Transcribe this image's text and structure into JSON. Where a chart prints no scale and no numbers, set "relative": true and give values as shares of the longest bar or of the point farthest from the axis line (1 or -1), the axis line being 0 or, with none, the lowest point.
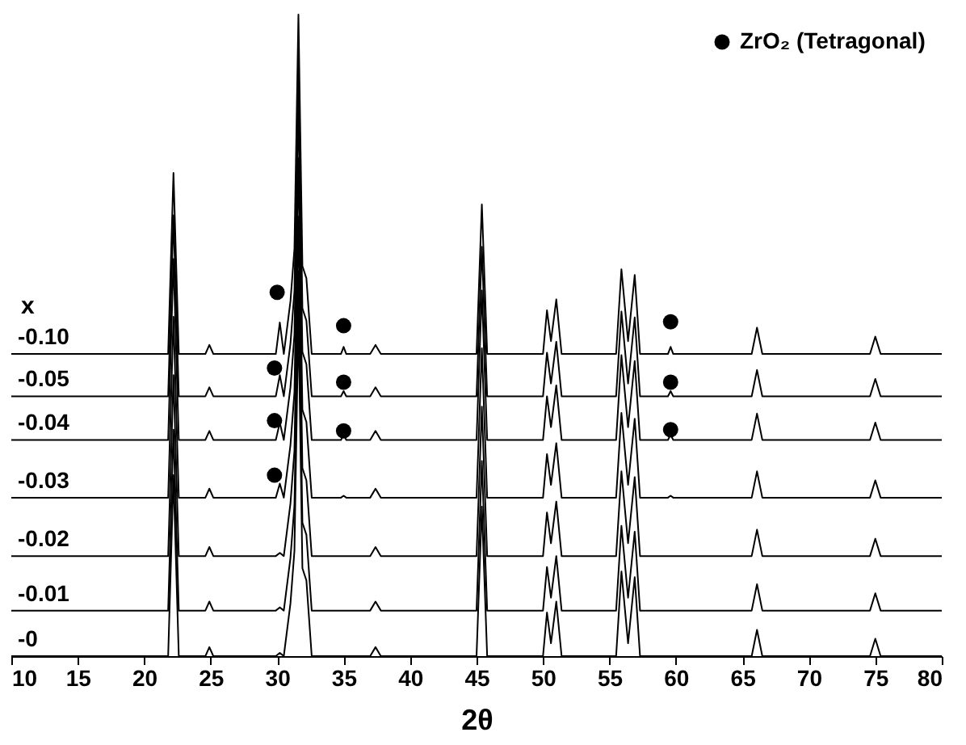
{
  "chart_data": {
    "type": "line",
    "relative": true,
    "xlabel": "2θ",
    "xlim": [
      10,
      80
    ],
    "xticks": [
      10,
      15,
      20,
      25,
      30,
      35,
      40,
      45,
      50,
      55,
      60,
      65,
      70,
      75,
      80
    ],
    "grid": false,
    "legend": "top right",
    "line_style": "solid",
    "annotations": [
      "x"
    ],
    "x": [
      10,
      15,
      21.8,
      22.2,
      22.6,
      24.6,
      24.9,
      25.2,
      29.9,
      30.2,
      30.5,
      31.0,
      31.3,
      31.6,
      31.9,
      32.2,
      32.6,
      34.8,
      35.0,
      35.2,
      37.0,
      37.4,
      37.8,
      45.0,
      45.4,
      45.8,
      50.0,
      50.3,
      50.6,
      51.0,
      51.4,
      55.5,
      55.9,
      56.4,
      56.9,
      57.3,
      59.4,
      59.6,
      59.8,
      65.7,
      66.1,
      66.5,
      74.6,
      75.0,
      75.4,
      80
    ],
    "series": [
      {
        "name": "-0",
        "color": "#000000",
        "values": [
          0,
          0,
          0,
          0.282,
          0,
          0,
          0.014,
          0,
          0,
          0.005,
          0,
          0.082,
          0.164,
          0.529,
          0.137,
          0.118,
          0,
          0,
          0,
          0,
          0,
          0.014,
          0,
          0,
          0.233,
          0,
          0,
          0.068,
          0.02,
          0.085,
          0,
          0,
          0.132,
          0.02,
          0.123,
          0,
          0,
          0,
          0,
          0,
          0.041,
          0,
          0,
          0.027,
          0,
          0
        ]
      },
      {
        "name": "-0.01",
        "color": "#000000",
        "values": [
          0.071,
          0.071,
          0.071,
          0.353,
          0.071,
          0.071,
          0.085,
          0.071,
          0.071,
          0.076,
          0.071,
          0.153,
          0.235,
          0.6,
          0.208,
          0.189,
          0.071,
          0.071,
          0.071,
          0.071,
          0.071,
          0.085,
          0.071,
          0.071,
          0.304,
          0.071,
          0.071,
          0.139,
          0.091,
          0.156,
          0.071,
          0.071,
          0.203,
          0.091,
          0.194,
          0.071,
          0.071,
          0.071,
          0.071,
          0.071,
          0.112,
          0.071,
          0.071,
          0.098,
          0.071,
          0.071
        ]
      },
      {
        "name": "-0.02",
        "color": "#000000",
        "values": [
          0.156,
          0.156,
          0.156,
          0.438,
          0.156,
          0.156,
          0.17,
          0.156,
          0.156,
          0.161,
          0.156,
          0.238,
          0.32,
          0.685,
          0.293,
          0.274,
          0.156,
          0.156,
          0.156,
          0.156,
          0.156,
          0.17,
          0.156,
          0.156,
          0.389,
          0.156,
          0.156,
          0.224,
          0.176,
          0.241,
          0.156,
          0.156,
          0.288,
          0.176,
          0.279,
          0.156,
          0.156,
          0.156,
          0.156,
          0.156,
          0.197,
          0.156,
          0.156,
          0.183,
          0.156,
          0.156
        ]
      },
      {
        "name": "-0.03",
        "color": "#000000",
        "values": [
          0.247,
          0.247,
          0.247,
          0.529,
          0.247,
          0.247,
          0.261,
          0.247,
          0.247,
          0.269,
          0.247,
          0.329,
          0.411,
          0.776,
          0.384,
          0.365,
          0.247,
          0.247,
          0.25,
          0.247,
          0.247,
          0.261,
          0.247,
          0.247,
          0.48,
          0.247,
          0.247,
          0.315,
          0.267,
          0.332,
          0.247,
          0.247,
          0.379,
          0.267,
          0.37,
          0.247,
          0.247,
          0.25,
          0.247,
          0.247,
          0.288,
          0.247,
          0.247,
          0.274,
          0.247,
          0.247
        ]
      },
      {
        "name": "-0.04",
        "color": "#000000",
        "values": [
          0.337,
          0.337,
          0.337,
          0.619,
          0.337,
          0.337,
          0.351,
          0.337,
          0.337,
          0.364,
          0.337,
          0.419,
          0.501,
          0.866,
          0.474,
          0.455,
          0.337,
          0.337,
          0.345,
          0.337,
          0.337,
          0.351,
          0.337,
          0.337,
          0.57,
          0.337,
          0.337,
          0.405,
          0.357,
          0.422,
          0.337,
          0.337,
          0.469,
          0.357,
          0.46,
          0.337,
          0.337,
          0.345,
          0.337,
          0.337,
          0.378,
          0.337,
          0.337,
          0.364,
          0.337,
          0.337
        ]
      },
      {
        "name": "-0.05",
        "color": "#000000",
        "values": [
          0.405,
          0.405,
          0.405,
          0.687,
          0.405,
          0.405,
          0.419,
          0.405,
          0.405,
          0.438,
          0.405,
          0.487,
          0.569,
          0.934,
          0.542,
          0.523,
          0.405,
          0.405,
          0.413,
          0.405,
          0.405,
          0.419,
          0.405,
          0.405,
          0.638,
          0.405,
          0.405,
          0.473,
          0.425,
          0.49,
          0.405,
          0.405,
          0.537,
          0.425,
          0.528,
          0.405,
          0.405,
          0.413,
          0.405,
          0.405,
          0.446,
          0.405,
          0.405,
          0.432,
          0.405,
          0.405
        ]
      },
      {
        "name": "-0.10",
        "color": "#000000",
        "values": [
          0.471,
          0.471,
          0.471,
          0.753,
          0.471,
          0.471,
          0.485,
          0.471,
          0.471,
          0.52,
          0.471,
          0.553,
          0.635,
          1,
          0.608,
          0.589,
          0.471,
          0.471,
          0.482,
          0.471,
          0.471,
          0.485,
          0.471,
          0.471,
          0.704,
          0.471,
          0.471,
          0.539,
          0.491,
          0.556,
          0.471,
          0.471,
          0.603,
          0.491,
          0.594,
          0.471,
          0.471,
          0.482,
          0.471,
          0.471,
          0.512,
          0.471,
          0.471,
          0.498,
          0.471,
          0.471
        ]
      },
      {
        "name": "ZrO₂ (Tetragonal)",
        "type": "scatter",
        "marker": "circle",
        "color": "#000000",
        "x": [
          30.0,
          35.0,
          59.6,
          29.8,
          35.0,
          59.6,
          29.8,
          35.0,
          59.6,
          29.8
        ],
        "values": [
          0.567,
          0.515,
          0.521,
          0.449,
          0.427,
          0.427,
          0.367,
          0.351,
          0.353,
          0.282
        ]
      }
    ]
  }
}
